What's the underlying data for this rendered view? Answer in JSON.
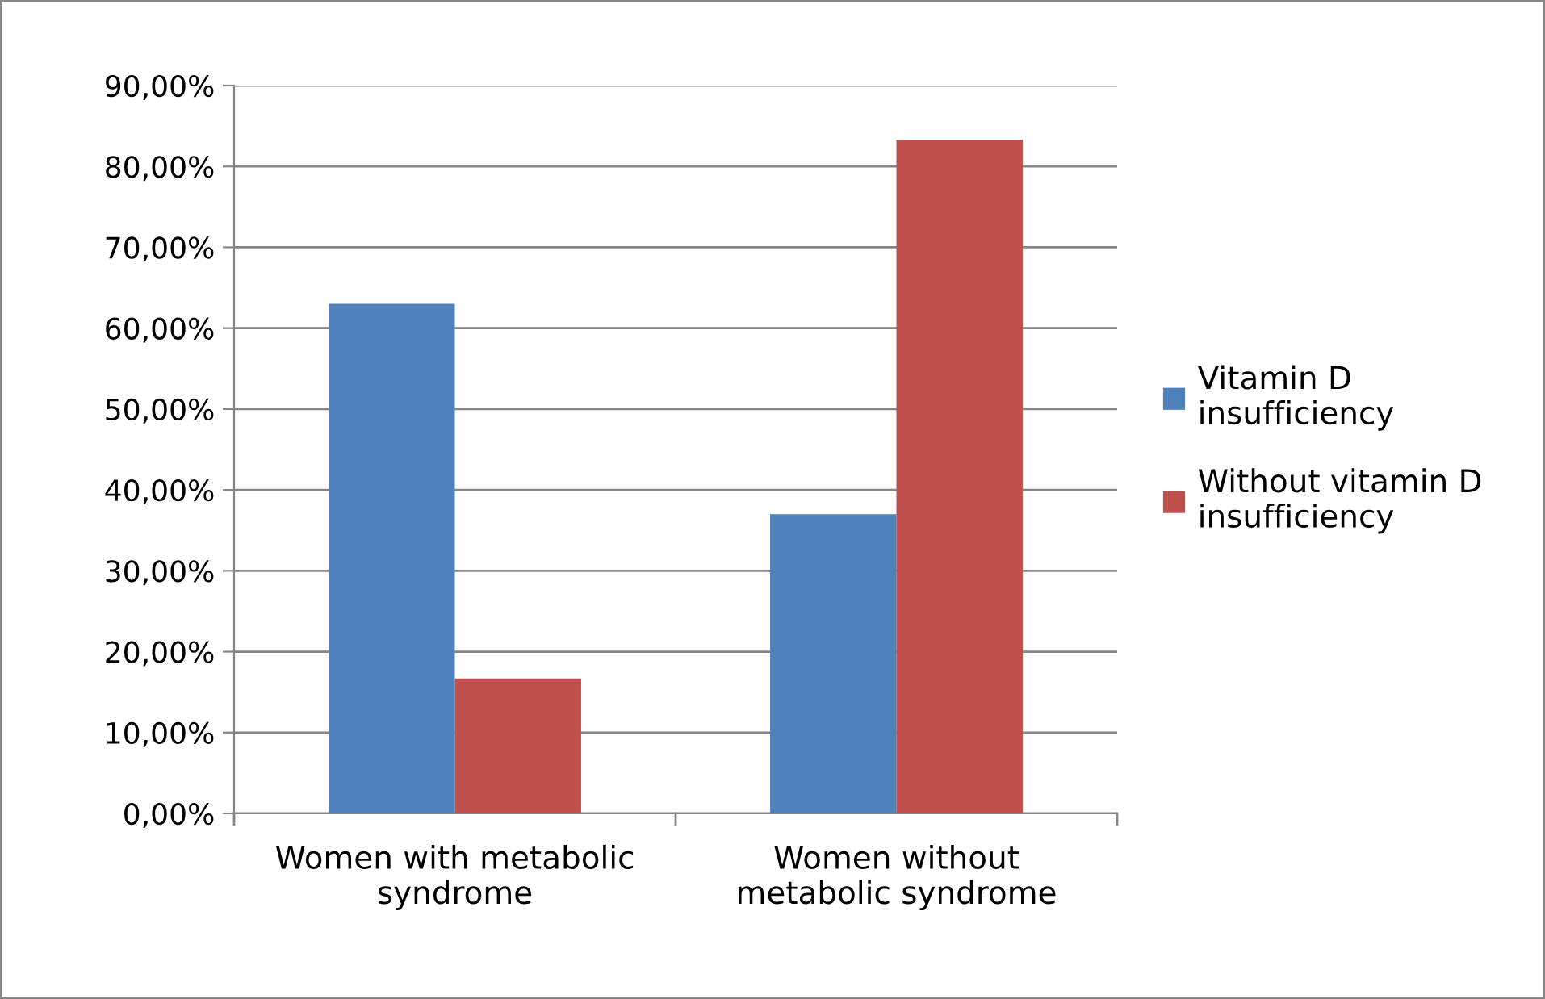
{
  "chart_data": {
    "type": "bar",
    "categories": [
      "Women with metabolic syndrome",
      "Women without metabolic syndrome"
    ],
    "series": [
      {
        "name": "Vitamin D insufficiency",
        "color": "#4f81bd",
        "values": [
          63.0,
          37.0
        ]
      },
      {
        "name": "Without vitamin D insufficiency",
        "color": "#c0504d",
        "values": [
          16.7,
          83.3
        ]
      }
    ],
    "ylim": [
      0,
      90
    ],
    "yticks": [
      {
        "value": 0,
        "label": "0,00%"
      },
      {
        "value": 10,
        "label": "10,00%"
      },
      {
        "value": 20,
        "label": "20,00%"
      },
      {
        "value": 30,
        "label": "30,00%"
      },
      {
        "value": 40,
        "label": "40,00%"
      },
      {
        "value": 50,
        "label": "50,00%"
      },
      {
        "value": 60,
        "label": "60,00%"
      },
      {
        "value": 70,
        "label": "70,00%"
      },
      {
        "value": 80,
        "label": "80,00%"
      },
      {
        "value": 90,
        "label": "90,00%"
      }
    ],
    "grid": "y",
    "legend": "right"
  }
}
